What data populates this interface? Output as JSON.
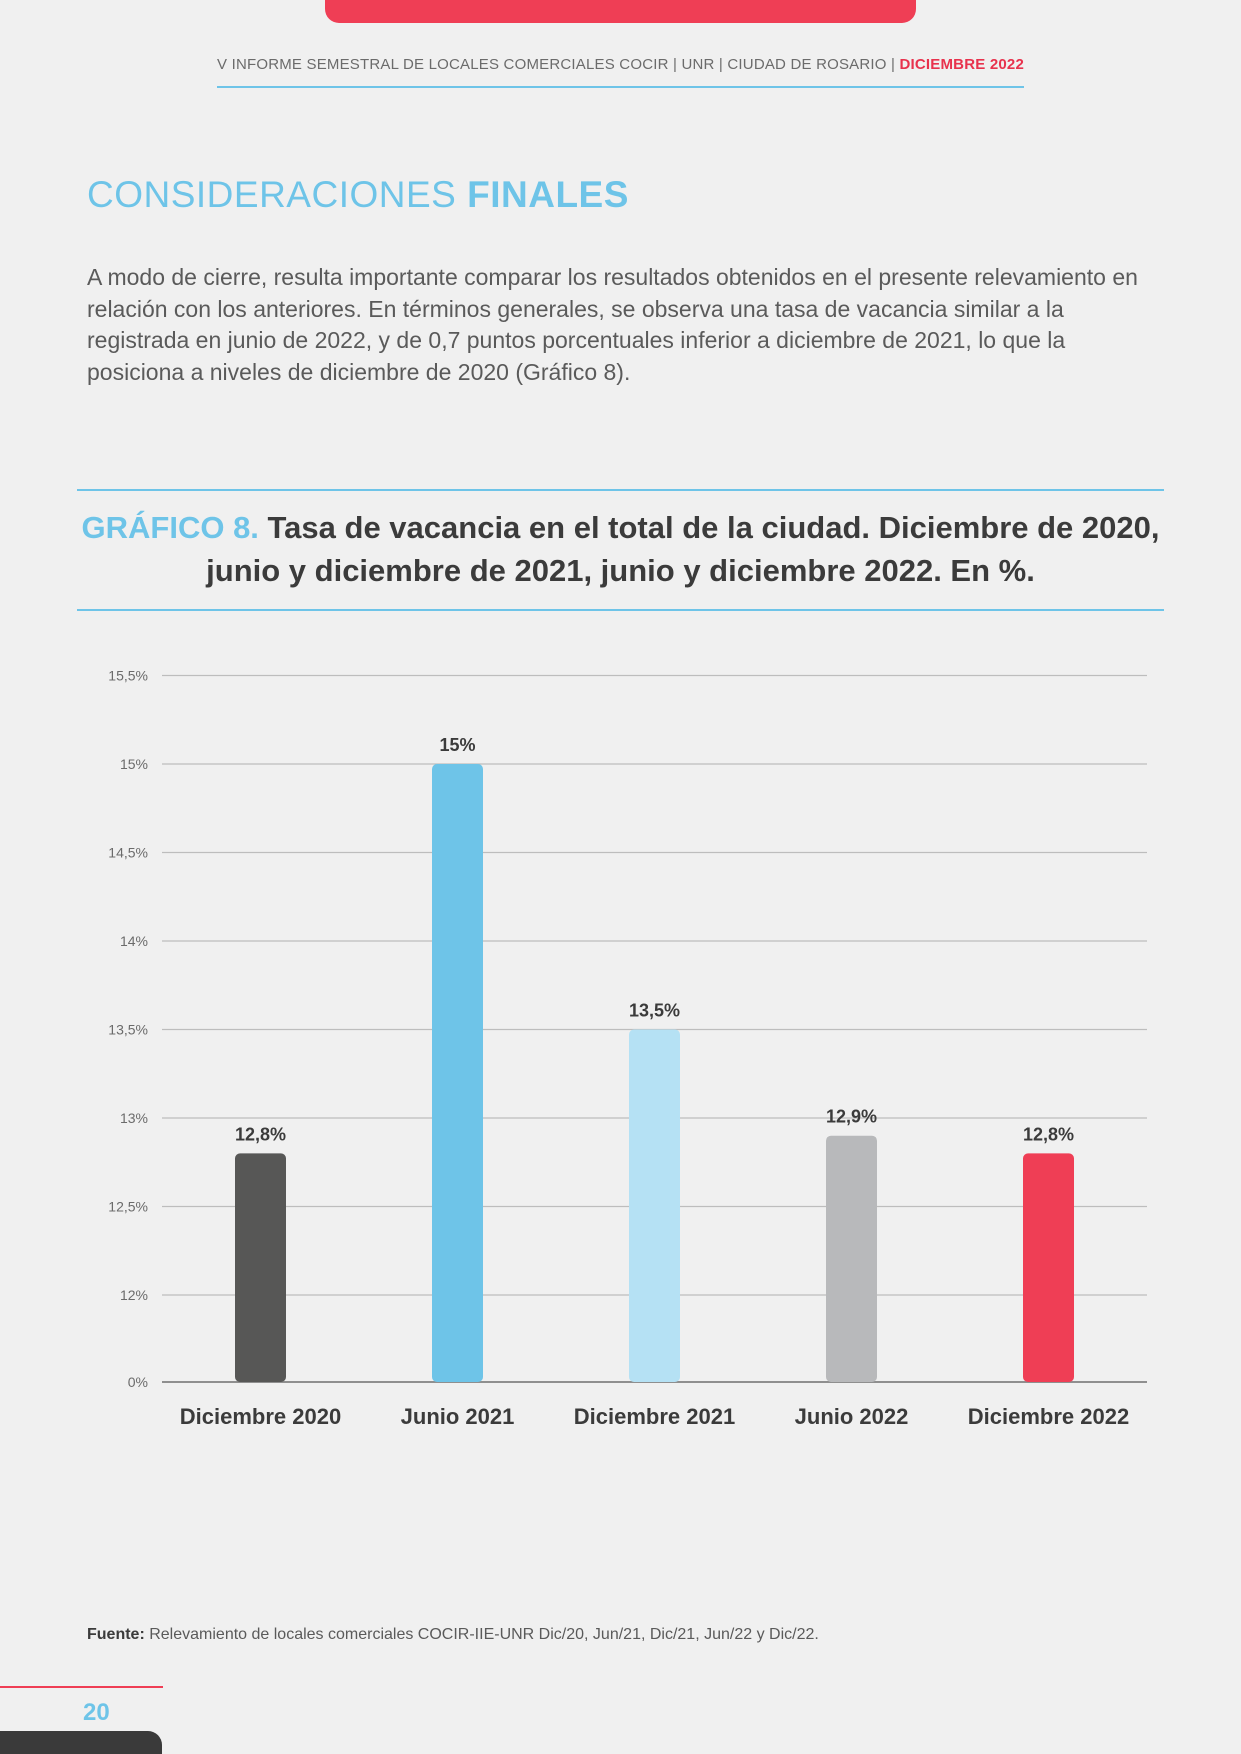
{
  "header": {
    "running_title": "V INFORME SEMESTRAL DE LOCALES COMERCIALES COCIR | UNR | CIUDAD DE ROSARIO | ",
    "running_title_accent": "DICIEMBRE 2022"
  },
  "section": {
    "title_light": "CONSIDERACIONES ",
    "title_bold": "FINALES",
    "body": "A modo de cierre, resulta importante comparar los resultados obtenidos en el presente relevamiento en relación con los anteriores. En términos generales, se observa una tasa de vacancia similar a la registrada en junio de 2022, y de 0,7 puntos porcentuales inferior a diciembre de 2021, lo que la posiciona a niveles de diciembre de 2020 (Gráfico 8)."
  },
  "figure": {
    "number": "GRÁFICO 8.",
    "title": "Tasa de vacancia en el total de la ciudad. Diciembre de 2020, junio y diciembre de 2021, junio y diciembre 2022. En %."
  },
  "chart_data": {
    "type": "bar",
    "categories": [
      "Diciembre 2020",
      "Junio 2021",
      "Diciembre 2021",
      "Junio 2022",
      "Diciembre 2022"
    ],
    "values": [
      12.8,
      15.0,
      13.5,
      12.9,
      12.8
    ],
    "data_labels": [
      "12,8%",
      "15%",
      "13,5%",
      "12,9%",
      "12,8%"
    ],
    "colors": [
      "#575756",
      "#6ec4e8",
      "#b5e1f4",
      "#b8b9bb",
      "#ef3e55"
    ],
    "y_ticks": [
      {
        "value": 0,
        "label": "0%"
      },
      {
        "value": 12,
        "label": "12%"
      },
      {
        "value": 12.5,
        "label": "12,5%"
      },
      {
        "value": 13,
        "label": "13%"
      },
      {
        "value": 13.5,
        "label": "13,5%"
      },
      {
        "value": 14,
        "label": "14%"
      },
      {
        "value": 14.5,
        "label": "14,5%"
      },
      {
        "value": 15,
        "label": "15%"
      },
      {
        "value": 15.5,
        "label": "15,5%"
      }
    ],
    "axis_break": "y axis jumps from 0% to 12%",
    "grid": true,
    "legend": "none"
  },
  "footer": {
    "source_label": "Fuente:",
    "source_text": " Relevamiento de locales comerciales COCIR-IIE-UNR Dic/20, Jun/21, Dic/21, Jun/22 y Dic/22.",
    "page_number": "20"
  },
  "colors": {
    "accent_blue": "#6ec4e8",
    "accent_red": "#ef3e55",
    "background": "#f0f0f0"
  }
}
